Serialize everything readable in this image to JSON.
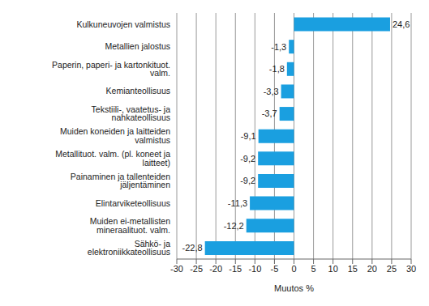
{
  "chart_data": {
    "type": "bar",
    "orientation": "horizontal",
    "categories": [
      "Kulkuneuvojen valmistus",
      "Metallien jalostus",
      "Paperin, paperi- ja kartonkituot. valm.",
      "Kemianteollisuus",
      "Tekstiili-, vaatetus- ja nahkateollisuus",
      "Muiden koneiden ja laitteiden valmistus",
      "Metallituot. valm. (pl. koneet ja laitteet)",
      "Painaminen ja tallenteiden jäljentäminen",
      "Elintarviketeollisuus",
      "Muiden ei-metallisten mineraalituot. valm.",
      "Sähkö- ja elektroniikkateollisuus"
    ],
    "values": [
      24.6,
      -1.3,
      -1.8,
      -3.3,
      -3.7,
      -9.1,
      -9.2,
      -9.2,
      -11.3,
      -12.2,
      -22.8
    ],
    "value_labels": [
      "24,6",
      "-1,3",
      "-1,8",
      "-3,3",
      "-3,7",
      "-9,1",
      "-9,2",
      "-9,2",
      "-11,3",
      "-12,2",
      "-22,8"
    ],
    "data_labels": true,
    "color": "#1a9fe0",
    "x_label": "Muutos %",
    "xlim": [
      -30,
      30
    ],
    "xticks": [
      -30,
      -25,
      -20,
      -15,
      -10,
      -5,
      0,
      5,
      10,
      15,
      20,
      25,
      30
    ],
    "grid": true
  }
}
